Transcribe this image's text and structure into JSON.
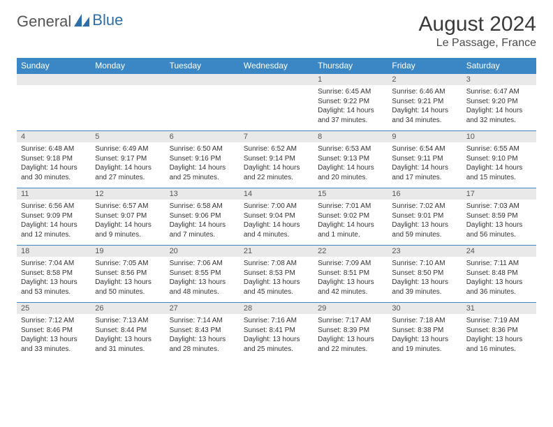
{
  "brand": {
    "part1": "General",
    "part2": "Blue"
  },
  "title": "August 2024",
  "location": "Le Passage, France",
  "colors": {
    "header_bg": "#3b86c4",
    "header_text": "#ffffff",
    "daynum_bg": "#e9e9e9",
    "row_border": "#3b86c4",
    "logo_blue": "#2f6fa8"
  },
  "weekdays": [
    "Sunday",
    "Monday",
    "Tuesday",
    "Wednesday",
    "Thursday",
    "Friday",
    "Saturday"
  ],
  "weeks": [
    [
      {
        "empty": true
      },
      {
        "empty": true
      },
      {
        "empty": true
      },
      {
        "empty": true
      },
      {
        "n": "1",
        "sunrise": "6:45 AM",
        "sunset": "9:22 PM",
        "daylight": "14 hours and 37 minutes."
      },
      {
        "n": "2",
        "sunrise": "6:46 AM",
        "sunset": "9:21 PM",
        "daylight": "14 hours and 34 minutes."
      },
      {
        "n": "3",
        "sunrise": "6:47 AM",
        "sunset": "9:20 PM",
        "daylight": "14 hours and 32 minutes."
      }
    ],
    [
      {
        "n": "4",
        "sunrise": "6:48 AM",
        "sunset": "9:18 PM",
        "daylight": "14 hours and 30 minutes."
      },
      {
        "n": "5",
        "sunrise": "6:49 AM",
        "sunset": "9:17 PM",
        "daylight": "14 hours and 27 minutes."
      },
      {
        "n": "6",
        "sunrise": "6:50 AM",
        "sunset": "9:16 PM",
        "daylight": "14 hours and 25 minutes."
      },
      {
        "n": "7",
        "sunrise": "6:52 AM",
        "sunset": "9:14 PM",
        "daylight": "14 hours and 22 minutes."
      },
      {
        "n": "8",
        "sunrise": "6:53 AM",
        "sunset": "9:13 PM",
        "daylight": "14 hours and 20 minutes."
      },
      {
        "n": "9",
        "sunrise": "6:54 AM",
        "sunset": "9:11 PM",
        "daylight": "14 hours and 17 minutes."
      },
      {
        "n": "10",
        "sunrise": "6:55 AM",
        "sunset": "9:10 PM",
        "daylight": "14 hours and 15 minutes."
      }
    ],
    [
      {
        "n": "11",
        "sunrise": "6:56 AM",
        "sunset": "9:09 PM",
        "daylight": "14 hours and 12 minutes."
      },
      {
        "n": "12",
        "sunrise": "6:57 AM",
        "sunset": "9:07 PM",
        "daylight": "14 hours and 9 minutes."
      },
      {
        "n": "13",
        "sunrise": "6:58 AM",
        "sunset": "9:06 PM",
        "daylight": "14 hours and 7 minutes."
      },
      {
        "n": "14",
        "sunrise": "7:00 AM",
        "sunset": "9:04 PM",
        "daylight": "14 hours and 4 minutes."
      },
      {
        "n": "15",
        "sunrise": "7:01 AM",
        "sunset": "9:02 PM",
        "daylight": "14 hours and 1 minute."
      },
      {
        "n": "16",
        "sunrise": "7:02 AM",
        "sunset": "9:01 PM",
        "daylight": "13 hours and 59 minutes."
      },
      {
        "n": "17",
        "sunrise": "7:03 AM",
        "sunset": "8:59 PM",
        "daylight": "13 hours and 56 minutes."
      }
    ],
    [
      {
        "n": "18",
        "sunrise": "7:04 AM",
        "sunset": "8:58 PM",
        "daylight": "13 hours and 53 minutes."
      },
      {
        "n": "19",
        "sunrise": "7:05 AM",
        "sunset": "8:56 PM",
        "daylight": "13 hours and 50 minutes."
      },
      {
        "n": "20",
        "sunrise": "7:06 AM",
        "sunset": "8:55 PM",
        "daylight": "13 hours and 48 minutes."
      },
      {
        "n": "21",
        "sunrise": "7:08 AM",
        "sunset": "8:53 PM",
        "daylight": "13 hours and 45 minutes."
      },
      {
        "n": "22",
        "sunrise": "7:09 AM",
        "sunset": "8:51 PM",
        "daylight": "13 hours and 42 minutes."
      },
      {
        "n": "23",
        "sunrise": "7:10 AM",
        "sunset": "8:50 PM",
        "daylight": "13 hours and 39 minutes."
      },
      {
        "n": "24",
        "sunrise": "7:11 AM",
        "sunset": "8:48 PM",
        "daylight": "13 hours and 36 minutes."
      }
    ],
    [
      {
        "n": "25",
        "sunrise": "7:12 AM",
        "sunset": "8:46 PM",
        "daylight": "13 hours and 33 minutes."
      },
      {
        "n": "26",
        "sunrise": "7:13 AM",
        "sunset": "8:44 PM",
        "daylight": "13 hours and 31 minutes."
      },
      {
        "n": "27",
        "sunrise": "7:14 AM",
        "sunset": "8:43 PM",
        "daylight": "13 hours and 28 minutes."
      },
      {
        "n": "28",
        "sunrise": "7:16 AM",
        "sunset": "8:41 PM",
        "daylight": "13 hours and 25 minutes."
      },
      {
        "n": "29",
        "sunrise": "7:17 AM",
        "sunset": "8:39 PM",
        "daylight": "13 hours and 22 minutes."
      },
      {
        "n": "30",
        "sunrise": "7:18 AM",
        "sunset": "8:38 PM",
        "daylight": "13 hours and 19 minutes."
      },
      {
        "n": "31",
        "sunrise": "7:19 AM",
        "sunset": "8:36 PM",
        "daylight": "13 hours and 16 minutes."
      }
    ]
  ],
  "labels": {
    "sunrise": "Sunrise:",
    "sunset": "Sunset:",
    "daylight": "Daylight:"
  }
}
